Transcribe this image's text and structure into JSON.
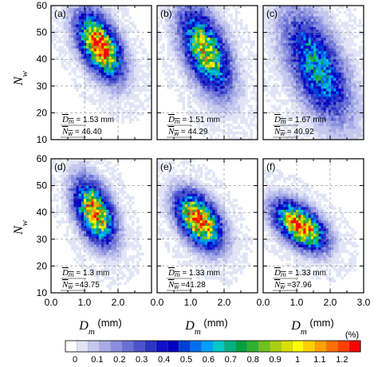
{
  "chart_data": {
    "type": "heatmap",
    "description_units": "%",
    "xlabel_sym": "D",
    "xlabel_sub": "m",
    "xlabel_unit": " (mm)",
    "ylabel_sym": "N",
    "ylabel_sub": "w",
    "xlim": [
      0.0,
      3.0
    ],
    "ylim": [
      10,
      60
    ],
    "x_ticks": [
      "0.0",
      "1.0",
      "2.0"
    ],
    "x_ticks_last": [
      "0.0",
      "1.0",
      "2.0",
      "3.0"
    ],
    "y_ticks": [
      "60",
      "50",
      "40",
      "30",
      "20",
      "10"
    ],
    "grid": true,
    "panels": [
      {
        "label": "(a)",
        "dm_label": "D̅m̅ =",
        "dm": "1.53 mm",
        "nw_label": "N̅w̅ =",
        "nw": "46.40",
        "center": [
          1.45,
          45
        ],
        "spread": [
          0.45,
          7
        ],
        "tilt": -9,
        "peak": 1.2
      },
      {
        "label": "(b)",
        "dm_label": "D̅m̅ =",
        "dm": "1.51 mm",
        "nw_label": "N̅w̅ =",
        "nw": "44.29",
        "center": [
          1.45,
          43
        ],
        "spread": [
          0.5,
          9
        ],
        "tilt": -11,
        "peak": 0.9
      },
      {
        "label": "(c)",
        "dm_label": "D̅m̅ =",
        "dm": "1.67 mm",
        "nw_label": "N̅w̅ =",
        "nw": "40.92",
        "center": [
          1.6,
          37
        ],
        "spread": [
          0.65,
          11
        ],
        "tilt": -12,
        "peak": 0.6
      },
      {
        "label": "(d)",
        "dm_label": "D̅m =",
        "dm": "1.3 mm",
        "nw_label": "N̅w =",
        "nw": "43.75",
        "center": [
          1.3,
          40
        ],
        "spread": [
          0.4,
          7
        ],
        "tilt": -9,
        "peak": 1.1
      },
      {
        "label": "(e)",
        "dm_label": "D̅m =",
        "dm": "1.33 mm",
        "nw_label": "N̅w =",
        "nw": "41.28",
        "center": [
          1.25,
          37
        ],
        "spread": [
          0.45,
          6
        ],
        "tilt": -7,
        "peak": 1.2
      },
      {
        "label": "(f)",
        "dm_label": "D̅m =",
        "dm": "1.33 mm",
        "nw_label": "N̅w =",
        "nw": "37.96",
        "center": [
          1.1,
          35
        ],
        "spread": [
          0.5,
          5
        ],
        "tilt": -6,
        "peak": 1.25
      }
    ],
    "colorbar": {
      "ticks": [
        "0",
        "0.1",
        "0.2",
        "0.3",
        "0.4",
        "0.5",
        "0.6",
        "0.7",
        "0.8",
        "0.9",
        "1",
        "1.1",
        "1.2"
      ],
      "unit": "(%)",
      "colors": [
        "#ffffff",
        "#e2e4f6",
        "#c5c8ee",
        "#a7abe6",
        "#898fde",
        "#6a70d6",
        "#4b53cd",
        "#2c34c4",
        "#1010c8",
        "#0000c0",
        "#0040d8",
        "#0070f0",
        "#00a0ff",
        "#00c8c8",
        "#00b080",
        "#00a040",
        "#30b030",
        "#70c020",
        "#a8d010",
        "#d8e000",
        "#ffff00",
        "#ffd000",
        "#ffa000",
        "#ff7000",
        "#ff4000",
        "#ff0000"
      ]
    }
  }
}
